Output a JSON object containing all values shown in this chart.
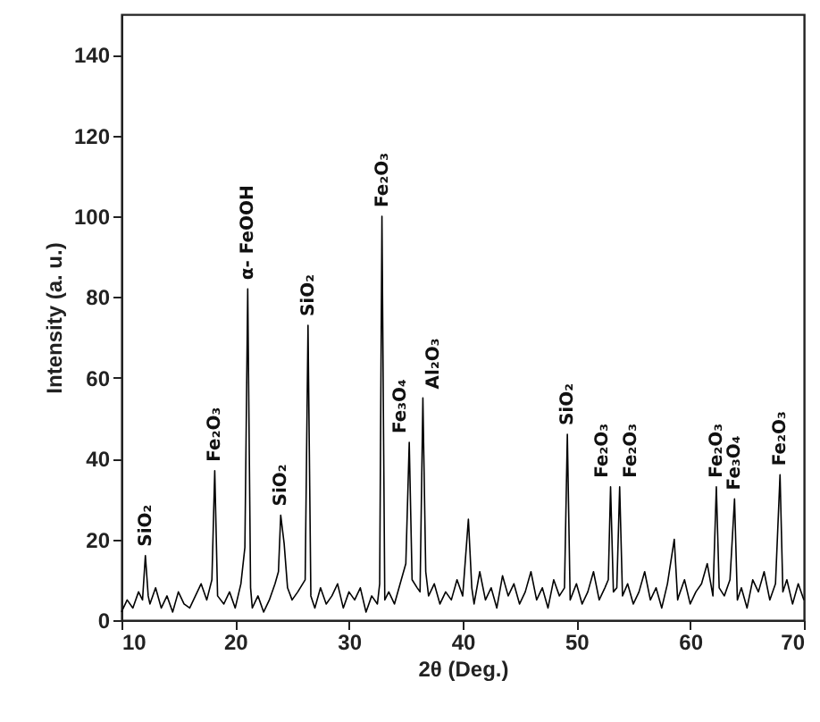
{
  "chart_data": {
    "type": "line",
    "xlabel": "2θ (Deg.)",
    "ylabel": "Intensity (a. u.)",
    "xlim": [
      10,
      70
    ],
    "xticks": [
      10,
      20,
      30,
      40,
      50,
      60,
      70
    ],
    "ylim": [
      0,
      150
    ],
    "yticks": [
      0,
      20,
      40,
      60,
      80,
      100,
      120,
      140
    ],
    "x": [
      10,
      10.5,
      11,
      11.5,
      11.85,
      12.1,
      12.35,
      12.5,
      13,
      13.5,
      14,
      14.5,
      15,
      15.5,
      16,
      16.5,
      17,
      17.5,
      17.95,
      18.2,
      18.45,
      19,
      19.5,
      20,
      20.5,
      20.85,
      21.1,
      21.35,
      21.5,
      22,
      22.5,
      23,
      23.5,
      23.8,
      24,
      24.3,
      24.6,
      25,
      25.5,
      26.15,
      26.4,
      26.65,
      27,
      27.5,
      28,
      28.5,
      29,
      29.5,
      30,
      30.5,
      31,
      31.5,
      32,
      32.5,
      32.7,
      32.9,
      33.15,
      33.5,
      34,
      34.5,
      35,
      35.3,
      35.55,
      36,
      36.25,
      36.5,
      36.75,
      37,
      37.5,
      38,
      38.5,
      39,
      39.5,
      40,
      40.5,
      40.8,
      41,
      41.5,
      42,
      42.5,
      43,
      43.5,
      44,
      44.5,
      45,
      45.5,
      46,
      46.5,
      47,
      47.5,
      48,
      48.5,
      48.95,
      49.2,
      49.45,
      50,
      50.5,
      51,
      51.5,
      52,
      52.5,
      52.8,
      53,
      53.25,
      53.55,
      53.8,
      54.05,
      54.5,
      55,
      55.5,
      56,
      56.5,
      57,
      57.5,
      58,
      58.6,
      58.9,
      59,
      59.5,
      60,
      60.5,
      61,
      61.5,
      62,
      62.3,
      62.55,
      63,
      63.5,
      63.9,
      64.15,
      64.5,
      65,
      65.5,
      66,
      66.5,
      67,
      67.5,
      67.9,
      68.15,
      68.5,
      69,
      69.5,
      70
    ],
    "series": [
      {
        "color": "#000000",
        "values": [
          2,
          5,
          3,
          7,
          5,
          16,
          6,
          4,
          8,
          3,
          6,
          2,
          7,
          4,
          3,
          6,
          9,
          5,
          10,
          37,
          6,
          4,
          7,
          3,
          9,
          18,
          82,
          8,
          3,
          6,
          2,
          5,
          9,
          12,
          26,
          19,
          8,
          5,
          7,
          10,
          73,
          6,
          3,
          8,
          4,
          6,
          9,
          3,
          7,
          5,
          8,
          2,
          6,
          4,
          9,
          100,
          5,
          7,
          4,
          9,
          14,
          44,
          10,
          8,
          7,
          55,
          12,
          6,
          9,
          4,
          7,
          5,
          10,
          6,
          25,
          8,
          4,
          12,
          5,
          8,
          3,
          11,
          6,
          9,
          4,
          7,
          12,
          5,
          8,
          3,
          10,
          6,
          8,
          46,
          5,
          9,
          4,
          7,
          12,
          5,
          8,
          10,
          33,
          7,
          8,
          33,
          6,
          9,
          4,
          7,
          12,
          5,
          8,
          3,
          9,
          20,
          5,
          6,
          10,
          4,
          7,
          9,
          14,
          6,
          33,
          8,
          6,
          10,
          30,
          5,
          8,
          3,
          10,
          7,
          12,
          5,
          9,
          36,
          7,
          10,
          4,
          9,
          5
        ]
      }
    ],
    "annotations": [
      {
        "text": "SiO₂",
        "x": 12.1,
        "y": 16
      },
      {
        "text": "Fe₂O₃",
        "x": 18.2,
        "y": 37
      },
      {
        "text": "α- FeOOH",
        "x": 21.1,
        "y": 82
      },
      {
        "text": "SiO₂",
        "x": 24,
        "y": 26
      },
      {
        "text": "SiO₂",
        "x": 26.4,
        "y": 73
      },
      {
        "text": "Fe₂O₃",
        "x": 32.9,
        "y": 100
      },
      {
        "text": "Fe₃O₄",
        "x": 35.3,
        "y": 44
      },
      {
        "text": "Al₂O₃",
        "x": 36.5,
        "y": 55
      },
      {
        "text": "SiO₂",
        "x": 49.2,
        "y": 46
      },
      {
        "text": "Fe₂O₃",
        "x": 53,
        "y": 33
      },
      {
        "text": "Fe₂O₃",
        "x": 53.8,
        "y": 33
      },
      {
        "text": "Fe₂O₃",
        "x": 62.3,
        "y": 33
      },
      {
        "text": "Fe₃O₄",
        "x": 63.9,
        "y": 30
      },
      {
        "text": "Fe₂O₃",
        "x": 67.9,
        "y": 36
      }
    ]
  }
}
